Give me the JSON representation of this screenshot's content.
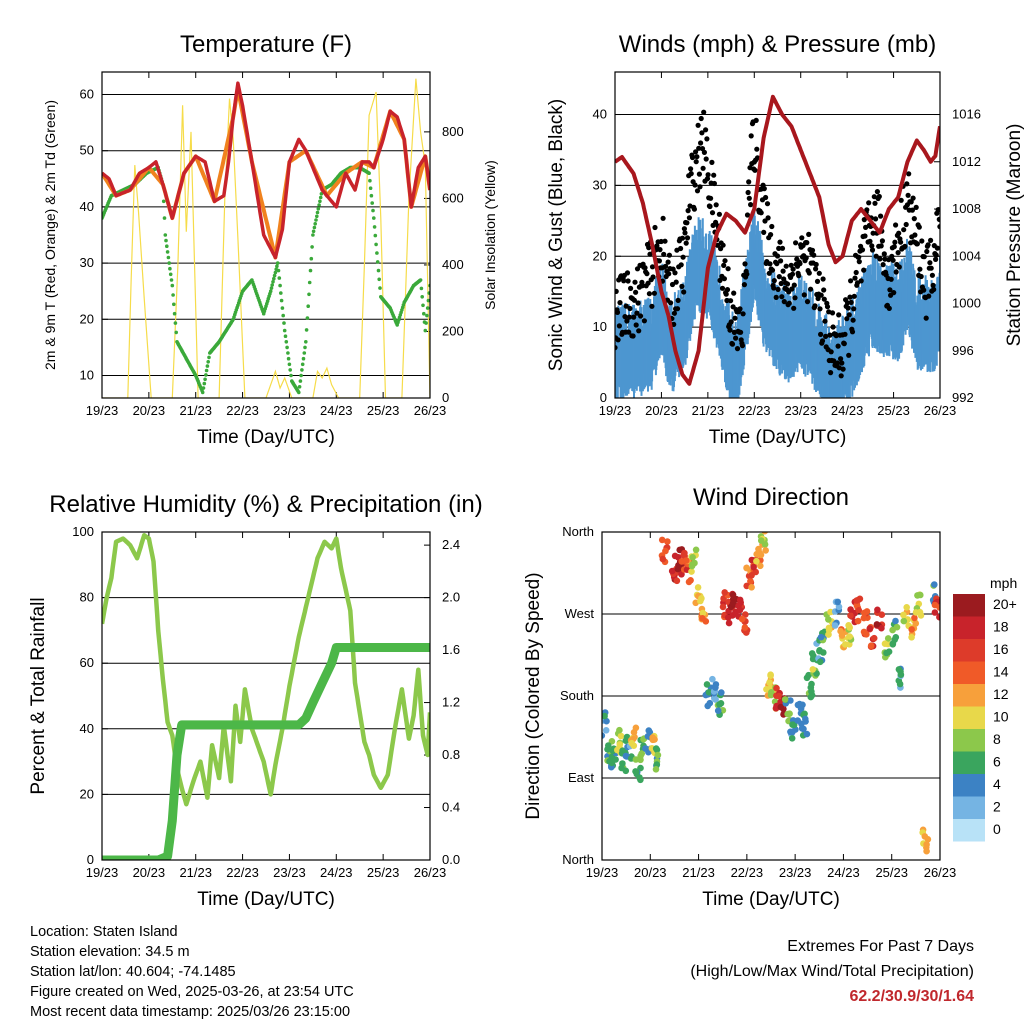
{
  "chart_data": [
    {
      "type": "line",
      "title": "Temperature (F)",
      "xlabel": "Time (Day/UTC)",
      "ylabel": "2m & 9m T (Red, Orange) & 2m Td (Green)",
      "y2label": "Solar Insolation (Yellow)",
      "x_ticks": [
        "19/23",
        "20/23",
        "21/23",
        "22/23",
        "23/23",
        "24/23",
        "25/23",
        "26/23"
      ],
      "ylim": [
        6,
        64
      ],
      "y_ticks": [
        10,
        20,
        30,
        40,
        50,
        60
      ],
      "y2lim": [
        0,
        980
      ],
      "y2_ticks": [
        0,
        200,
        400,
        600,
        800
      ],
      "grid": "horizontal",
      "series": [
        {
          "name": "2m T",
          "color": "#c8232b",
          "axis": "left",
          "x": [
            0,
            0.15,
            0.3,
            0.6,
            0.8,
            1.0,
            1.15,
            1.3,
            1.5,
            1.75,
            2.0,
            2.2,
            2.4,
            2.6,
            2.7,
            2.8,
            2.9,
            3.0,
            3.2,
            3.45,
            3.7,
            3.85,
            4.0,
            4.2,
            4.35,
            4.5,
            4.7,
            4.8,
            5.0,
            5.2,
            5.4,
            5.55,
            5.7,
            5.8,
            6.0,
            6.15,
            6.3,
            6.45,
            6.6,
            6.75,
            6.9,
            7.0
          ],
          "values": [
            46,
            45,
            42,
            43,
            46,
            47,
            48,
            44,
            38,
            46,
            49,
            48,
            41,
            42,
            48,
            56,
            62,
            58,
            48,
            35,
            31,
            36,
            48,
            52,
            50,
            47,
            43,
            42,
            40,
            46,
            43,
            48,
            48,
            47,
            52,
            57,
            56,
            52,
            40,
            47,
            49,
            43
          ]
        },
        {
          "name": "9m T",
          "color": "#f0821e",
          "axis": "left",
          "x": [
            0,
            0.3,
            0.6,
            1.0,
            1.3,
            1.5,
            1.75,
            2.0,
            2.4,
            2.8,
            2.9,
            3.2,
            3.7,
            4.0,
            4.35,
            4.8,
            5.2,
            5.55,
            5.8,
            6.15,
            6.45,
            6.6,
            6.9,
            7.0
          ],
          "values": [
            46,
            42,
            43,
            47,
            44,
            38,
            46,
            49,
            41,
            56,
            61,
            48,
            31,
            48,
            50,
            42,
            46,
            48,
            47,
            57,
            52,
            40,
            49,
            43
          ]
        },
        {
          "name": "2m Td",
          "color": "#3aa93a",
          "axis": "left",
          "x": [
            0,
            0.2,
            0.45,
            0.7,
            0.95,
            1.2,
            1.3,
            1.35,
            1.5,
            1.6,
            1.8,
            2.0,
            2.15,
            2.3,
            2.5,
            2.8,
            3.0,
            3.2,
            3.45,
            3.6,
            3.75,
            3.9,
            4.05,
            4.2,
            4.35,
            4.5,
            4.7,
            4.9,
            5.1,
            5.3,
            5.5,
            5.7,
            5.8,
            5.95,
            6.15,
            6.3,
            6.45,
            6.65,
            6.8,
            6.9,
            7.0
          ],
          "values": [
            38,
            42,
            43,
            44,
            46,
            47,
            44,
            35,
            26,
            16,
            13,
            10,
            7,
            14,
            16,
            20,
            25,
            27,
            21,
            25,
            30,
            18,
            9,
            7,
            16,
            35,
            43,
            44,
            46,
            47,
            47,
            46,
            38,
            24,
            22,
            19,
            23,
            26,
            27,
            18,
            26
          ]
        },
        {
          "name": "Solar Insolation",
          "color": "#f6dc4a",
          "axis": "right",
          "x": [
            0,
            0.55,
            0.62,
            0.7,
            0.78,
            0.9,
            1.05,
            1.5,
            1.62,
            1.72,
            1.8,
            1.9,
            2.05,
            2.5,
            2.62,
            2.72,
            2.8,
            2.9,
            3.05,
            3.5,
            3.6,
            3.7,
            3.8,
            3.9,
            4.05,
            4.5,
            4.6,
            4.7,
            4.8,
            4.9,
            5.05,
            5.5,
            5.6,
            5.7,
            5.85,
            5.95,
            6.05,
            6.4,
            6.55,
            6.7,
            6.8,
            6.9,
            7.0
          ],
          "values": [
            0,
            0,
            350,
            700,
            560,
            300,
            0,
            0,
            400,
            880,
            500,
            800,
            0,
            0,
            600,
            900,
            780,
            480,
            0,
            0,
            40,
            80,
            30,
            60,
            0,
            0,
            80,
            60,
            90,
            40,
            0,
            0,
            400,
            850,
            920,
            540,
            0,
            0,
            600,
            960,
            800,
            700,
            0
          ]
        }
      ]
    },
    {
      "type": "scatter",
      "title": "Winds (mph) & Pressure (mb)",
      "xlabel": "Time (Day/UTC)",
      "ylabel": "Sonic Wind & Gust (Blue, Black)",
      "y2label": "Station Pressure (Maroon)",
      "x_ticks": [
        "19/23",
        "20/23",
        "21/23",
        "22/23",
        "23/23",
        "24/23",
        "25/23",
        "26/23"
      ],
      "ylim": [
        0,
        46
      ],
      "y_ticks": [
        0,
        10,
        20,
        30,
        40
      ],
      "y2lim": [
        992,
        1019.6
      ],
      "y2_ticks": [
        992,
        996,
        1000,
        1004,
        1008,
        1012,
        1016
      ],
      "grid": "horizontal",
      "series": [
        {
          "name": "Gust",
          "color": "#000000",
          "marker": "dot",
          "x": [
            0,
            0.5,
            0.8,
            1.0,
            1.2,
            1.5,
            1.6,
            1.75,
            1.9,
            2.0,
            2.2,
            2.45,
            2.6,
            2.75,
            2.9,
            3.0,
            3.2,
            3.5,
            3.75,
            4.0,
            4.2,
            4.4,
            4.55,
            4.7,
            4.9,
            5.1,
            5.35,
            5.55,
            5.7,
            5.9,
            6.1,
            6.3,
            6.5,
            6.7,
            6.9,
            7.0
          ],
          "values": [
            12,
            14,
            18,
            22,
            14,
            20,
            28,
            33,
            36,
            32,
            24,
            14,
            9,
            10,
            30,
            37,
            25,
            18,
            16,
            20,
            18,
            14,
            10,
            7,
            7,
            13,
            20,
            25,
            24,
            16,
            22,
            28,
            22,
            16,
            20,
            26
          ]
        },
        {
          "name": "Sonic Wind",
          "color": "#4d96d0",
          "marker": "dot",
          "x": [
            0,
            0.5,
            0.8,
            1.0,
            1.2,
            1.5,
            1.75,
            2.0,
            2.45,
            2.6,
            2.9,
            3.0,
            3.2,
            3.5,
            3.75,
            4.0,
            4.4,
            4.7,
            5.1,
            5.35,
            5.55,
            5.7,
            6.1,
            6.3,
            6.5,
            6.9,
            7.0
          ],
          "values": [
            7,
            8,
            9,
            14,
            8,
            12,
            20,
            19,
            8,
            5,
            17,
            22,
            15,
            11,
            10,
            12,
            8,
            4,
            8,
            12,
            15,
            14,
            13,
            17,
            12,
            11,
            15
          ]
        },
        {
          "name": "Station Pressure",
          "color": "#a8171d",
          "axis": "right",
          "x": [
            0,
            0.15,
            0.4,
            0.6,
            0.8,
            1.0,
            1.15,
            1.3,
            1.45,
            1.6,
            1.8,
            2.0,
            2.2,
            2.4,
            2.6,
            2.8,
            3.0,
            3.2,
            3.4,
            3.6,
            3.8,
            4.0,
            4.2,
            4.4,
            4.6,
            4.75,
            4.9,
            5.1,
            5.3,
            5.5,
            5.7,
            5.9,
            6.1,
            6.3,
            6.5,
            6.65,
            6.8,
            6.9,
            7.0
          ],
          "values": [
            1012,
            1012.4,
            1011,
            1008.5,
            1005,
            1001,
            999,
            996,
            994,
            993.2,
            996,
            1003,
            1006,
            1007.6,
            1007,
            1006,
            1008,
            1014,
            1017.5,
            1016,
            1015,
            1013,
            1011,
            1009,
            1005,
            1003.5,
            1004,
            1007,
            1008,
            1007,
            1006,
            1008,
            1009,
            1012,
            1013.8,
            1013,
            1012,
            1012.5,
            1015
          ]
        }
      ]
    },
    {
      "type": "line",
      "title": "Relative Humidity (%) & Precipitation (in)",
      "xlabel": "Time (Day/UTC)",
      "ylabel": "Percent & Total Rainfall",
      "x_ticks": [
        "19/23",
        "20/23",
        "21/23",
        "22/23",
        "23/23",
        "24/23",
        "25/23",
        "26/23"
      ],
      "ylim": [
        0,
        100
      ],
      "y_ticks": [
        0,
        20,
        40,
        60,
        80,
        100
      ],
      "y2lim": [
        0,
        2.5
      ],
      "y2_ticks": [
        "0.0",
        "0.4",
        "0.8",
        "1.2",
        "1.6",
        "2.0",
        "2.4"
      ],
      "grid": "horizontal",
      "series": [
        {
          "name": "Relative Humidity",
          "color": "#8cc84b",
          "axis": "left",
          "x": [
            0,
            0.1,
            0.2,
            0.3,
            0.45,
            0.6,
            0.75,
            0.9,
            1.0,
            1.1,
            1.2,
            1.3,
            1.4,
            1.5,
            1.6,
            1.7,
            1.8,
            1.95,
            2.1,
            2.25,
            2.35,
            2.5,
            2.6,
            2.75,
            2.85,
            2.95,
            3.05,
            3.2,
            3.35,
            3.45,
            3.6,
            3.7,
            3.85,
            4.0,
            4.2,
            4.4,
            4.6,
            4.75,
            4.9,
            5.0,
            5.1,
            5.3,
            5.4,
            5.5,
            5.6,
            5.7,
            5.8,
            5.95,
            6.1,
            6.25,
            6.4,
            6.55,
            6.65,
            6.75,
            6.85,
            6.95,
            7.0
          ],
          "values": [
            72,
            80,
            86,
            97,
            98,
            96,
            92,
            99,
            98,
            91,
            70,
            55,
            42,
            38,
            28,
            22,
            17,
            24,
            30,
            19,
            35,
            25,
            41,
            24,
            47,
            36,
            52,
            40,
            34,
            30,
            20,
            29,
            40,
            53,
            68,
            80,
            92,
            97,
            95,
            98,
            89,
            76,
            54,
            45,
            36,
            32,
            26,
            22,
            26,
            40,
            52,
            37,
            44,
            58,
            38,
            32,
            45
          ]
        },
        {
          "name": "Total Rainfall",
          "color": "#4cb748",
          "axis": "right",
          "x": [
            0,
            1.2,
            1.4,
            1.5,
            1.6,
            1.7,
            2.0,
            3.0,
            4.0,
            4.2,
            4.35,
            4.5,
            4.7,
            4.9,
            5.0,
            6.0,
            7.0
          ],
          "values": [
            0,
            0,
            0.03,
            0.3,
            0.8,
            1.03,
            1.03,
            1.03,
            1.03,
            1.03,
            1.08,
            1.2,
            1.35,
            1.5,
            1.62,
            1.62,
            1.62
          ]
        }
      ]
    },
    {
      "type": "scatter",
      "title": "Wind Direction",
      "xlabel": "Time (Day/UTC)",
      "ylabel": "Direction (Colored By Speed)",
      "x_ticks": [
        "19/23",
        "20/23",
        "21/23",
        "22/23",
        "23/23",
        "24/23",
        "25/23",
        "26/23"
      ],
      "ylim": [
        0,
        360
      ],
      "y_ticks": [
        "North",
        "East",
        "South",
        "West",
        "North"
      ],
      "grid": "horizontal",
      "colorbar_title": "mph",
      "colorbar_labels": [
        "20+",
        "18",
        "16",
        "14",
        "12",
        "10",
        "8",
        "6",
        "4",
        "2",
        "0"
      ],
      "colorbar_colors": [
        "#9b1b1f",
        "#c8232b",
        "#dd3b2a",
        "#f05a28",
        "#f7a03b",
        "#e8d84a",
        "#8cc84b",
        "#3aa55e",
        "#3c82c4",
        "#75b4e3",
        "#b8e2f7"
      ],
      "x": [
        0.05,
        0.15,
        0.25,
        0.35,
        0.45,
        0.55,
        0.65,
        0.75,
        0.85,
        0.95,
        1.05,
        1.15,
        1.3,
        1.5,
        1.6,
        1.7,
        1.8,
        1.9,
        2.0,
        2.1,
        2.2,
        2.3,
        2.45,
        2.55,
        2.65,
        2.75,
        2.85,
        2.95,
        3.05,
        3.15,
        3.25,
        3.35,
        3.45,
        3.55,
        3.65,
        3.75,
        3.85,
        3.95,
        4.1,
        4.2,
        4.3,
        4.4,
        4.5,
        4.55,
        4.7,
        4.85,
        5.0,
        5.1,
        5.2,
        5.3,
        5.45,
        5.6,
        5.75,
        5.9,
        6.05,
        6.15,
        6.3,
        6.45,
        6.55,
        6.7,
        6.85,
        6.95
      ],
      "direction": [
        150,
        120,
        115,
        130,
        110,
        125,
        135,
        100,
        120,
        130,
        130,
        110,
        340,
        320,
        330,
        325,
        318,
        330,
        290,
        270,
        180,
        190,
        170,
        280,
        270,
        285,
        280,
        260,
        310,
        320,
        335,
        350,
        190,
        180,
        175,
        170,
        165,
        145,
        160,
        150,
        190,
        215,
        230,
        240,
        260,
        270,
        240,
        250,
        270,
        275,
        260,
        245,
        265,
        230,
        250,
        200,
        270,
        255,
        280,
        20,
        290,
        280
      ],
      "speed": [
        4,
        6,
        5,
        9,
        7,
        4,
        11,
        6,
        8,
        3,
        10,
        6,
        15,
        18,
        20,
        16,
        14,
        9,
        10,
        12,
        5,
        3,
        6,
        16,
        18,
        20,
        17,
        15,
        14,
        16,
        12,
        10,
        11,
        9,
        17,
        20,
        6,
        4,
        3,
        5,
        7,
        8,
        4,
        6,
        10,
        3,
        12,
        9,
        17,
        15,
        14,
        16,
        18,
        8,
        6,
        4,
        10,
        12,
        9,
        11,
        6,
        16
      ]
    }
  ],
  "footer": {
    "location": "Location: Staten Island",
    "elevation": "Station elevation: 34.5 m",
    "latlon": "Station lat/lon: 40.604; -74.1485",
    "created": "Figure created on Wed, 2025-03-26, at 23:54 UTC",
    "recent": "Most recent data timestamp: 2025/03/26 23:15:00"
  },
  "extremes": {
    "title": "Extremes For Past 7 Days",
    "subtitle": "(High/Low/Max Wind/Total Precipitation)",
    "values": "62.2/30.9/30/1.64"
  }
}
